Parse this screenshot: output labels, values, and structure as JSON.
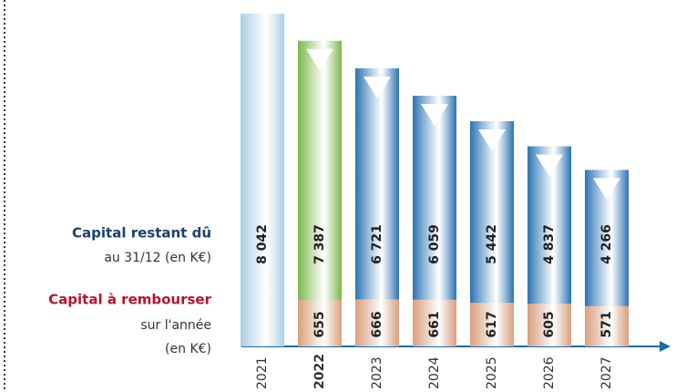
{
  "chart_data": {
    "type": "bar",
    "categories": [
      "2021",
      "2022",
      "2023",
      "2024",
      "2025",
      "2026",
      "2027"
    ],
    "highlight_category_color": "#5a8a1e",
    "series": [
      {
        "name": "Capital restant dû",
        "subtitle": [
          "au 31/12 (en K€)"
        ],
        "name_color": "#1d3f6e",
        "colors": [
          "#a9cfe6",
          "#7ab648",
          "#2a73b2",
          "#2a73b2",
          "#2a73b2",
          "#2a73b2",
          "#2a73b2"
        ],
        "values": [
          8042,
          7387,
          6721,
          6059,
          5442,
          4837,
          4266
        ],
        "value_labels": [
          "8 042",
          "7 387",
          "6 721",
          "6 059",
          "5 442",
          "4 837",
          "4 266"
        ]
      },
      {
        "name": "Capital à rembourser",
        "subtitle": [
          "sur l'année",
          "(en K€)"
        ],
        "name_color": "#b5152b",
        "color": "#dc9f7c",
        "values": [
          null,
          655,
          666,
          661,
          617,
          605,
          571
        ]
      }
    ]
  }
}
